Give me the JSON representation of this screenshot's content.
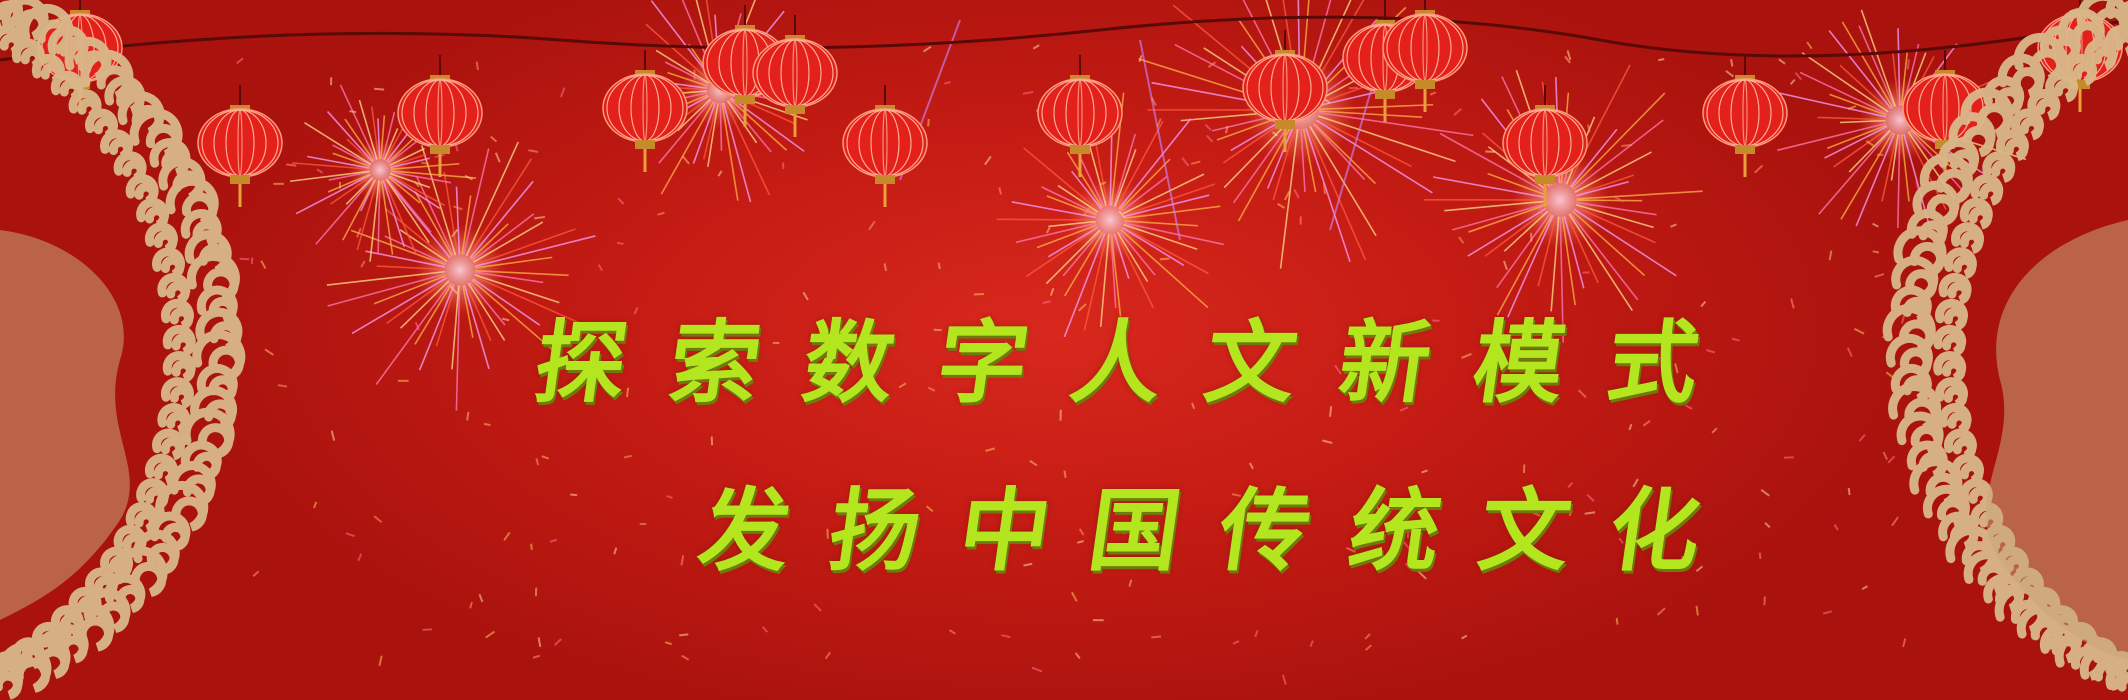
{
  "banner": {
    "line1": "探索数字人文新模式",
    "line2": "发扬中国传统文化"
  },
  "colors": {
    "background": "#c51c14",
    "text": "#b3e61f",
    "pattern": "#d9b98a",
    "lantern": "#e8231c"
  },
  "decorations": {
    "left_ornament": "dragon-cloud-pattern",
    "right_ornament": "dragon-cloud-pattern",
    "lanterns": "red-lanterns",
    "fireworks": "fireworks"
  }
}
